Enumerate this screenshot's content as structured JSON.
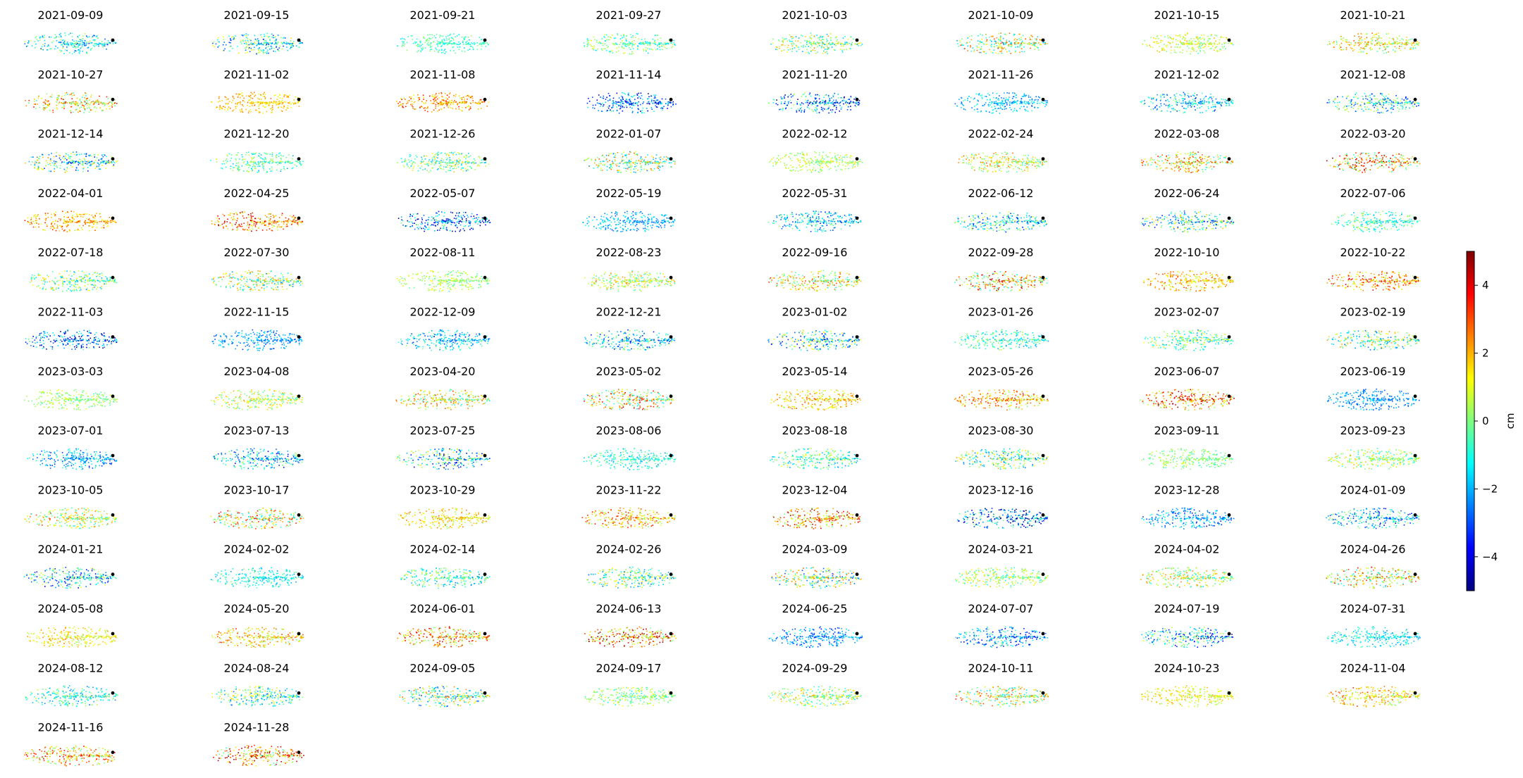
{
  "chart_data": {
    "type": "scatter",
    "layout": "small-multiples",
    "grid": false,
    "panel_dates": [
      "2021-09-09",
      "2021-09-15",
      "2021-09-21",
      "2021-09-27",
      "2021-10-03",
      "2021-10-09",
      "2021-10-15",
      "2021-10-21",
      "2021-10-27",
      "2021-11-02",
      "2021-11-08",
      "2021-11-14",
      "2021-11-20",
      "2021-11-26",
      "2021-12-02",
      "2021-12-08",
      "2021-12-14",
      "2021-12-20",
      "2021-12-26",
      "2022-01-07",
      "2022-02-12",
      "2022-02-24",
      "2022-03-08",
      "2022-03-20",
      "2022-04-01",
      "2022-04-25",
      "2022-05-07",
      "2022-05-19",
      "2022-05-31",
      "2022-06-12",
      "2022-06-24",
      "2022-07-06",
      "2022-07-18",
      "2022-07-30",
      "2022-08-11",
      "2022-08-23",
      "2022-09-16",
      "2022-09-28",
      "2022-10-10",
      "2022-10-22",
      "2022-11-03",
      "2022-11-15",
      "2022-12-09",
      "2022-12-21",
      "2023-01-02",
      "2023-01-26",
      "2023-02-07",
      "2023-02-19",
      "2023-03-03",
      "2023-04-08",
      "2023-04-20",
      "2023-05-02",
      "2023-05-14",
      "2023-05-26",
      "2023-06-07",
      "2023-06-19",
      "2023-07-01",
      "2023-07-13",
      "2023-07-25",
      "2023-08-06",
      "2023-08-18",
      "2023-08-30",
      "2023-09-11",
      "2023-09-23",
      "2023-10-05",
      "2023-10-17",
      "2023-10-29",
      "2023-11-22",
      "2023-12-04",
      "2023-12-16",
      "2023-12-28",
      "2024-01-09",
      "2024-01-21",
      "2024-02-02",
      "2024-02-14",
      "2024-02-26",
      "2024-03-09",
      "2024-03-21",
      "2024-04-02",
      "2024-04-26",
      "2024-05-08",
      "2024-05-20",
      "2024-06-01",
      "2024-06-13",
      "2024-06-25",
      "2024-07-07",
      "2024-07-19",
      "2024-07-31",
      "2024-08-12",
      "2024-08-24",
      "2024-09-05",
      "2024-09-17",
      "2024-09-29",
      "2024-10-11",
      "2024-10-23",
      "2024-11-04",
      "2024-11-16",
      "2024-11-28"
    ],
    "colorbar": {
      "label": "cm",
      "range": [
        -5,
        5
      ],
      "ticks": [
        -4,
        -2,
        0,
        2,
        4
      ],
      "colormap": "jet",
      "colormap_stops": [
        "#00007f",
        "#0000ff",
        "#007fff",
        "#00ffff",
        "#7fff7f",
        "#ffff00",
        "#ff7f00",
        "#ff0000",
        "#7f0000"
      ]
    }
  }
}
